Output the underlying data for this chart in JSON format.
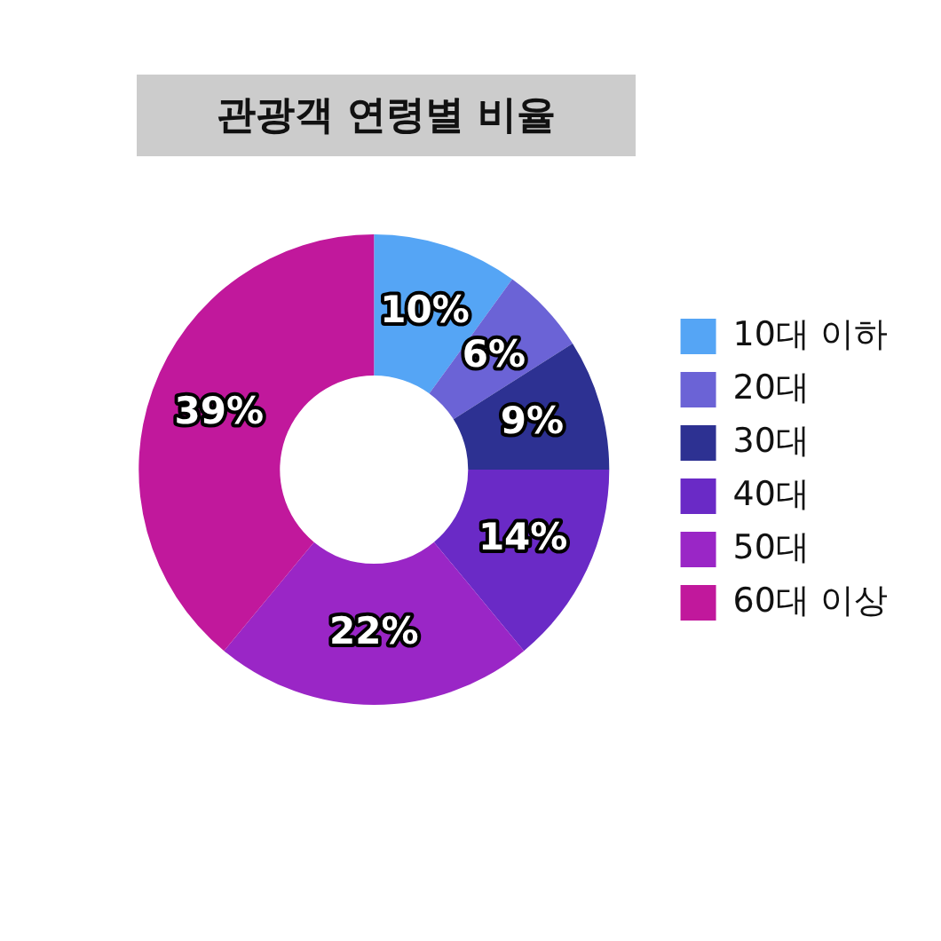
{
  "chart_data": {
    "type": "donut",
    "title": "관광객 연령별 비율",
    "categories": [
      "10대 이하",
      "20대",
      "30대",
      "40대",
      "50대",
      "60대 이상"
    ],
    "values": [
      10,
      6,
      9,
      14,
      22,
      39
    ],
    "value_labels": [
      "10%",
      "6%",
      "9%",
      "14%",
      "22%",
      "39%"
    ],
    "colors": [
      "#55a5f5",
      "#6b63d6",
      "#2d3192",
      "#6a2ac6",
      "#9a26c6",
      "#c1189c"
    ],
    "legend": "right"
  }
}
